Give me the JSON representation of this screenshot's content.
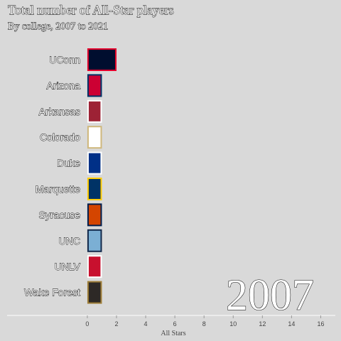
{
  "chart_data": {
    "type": "bar",
    "orientation": "horizontal",
    "title": "Total number of All-Star players",
    "subtitle": "By college, 2007 to 2021",
    "xlabel": "All Stars",
    "ylabel": "",
    "year": "2007",
    "xlim": [
      -5.5,
      17
    ],
    "xticks": [
      0,
      2,
      4,
      6,
      8,
      10,
      12,
      14,
      16
    ],
    "categories": [
      "UConn",
      "Arizona",
      "Arkansas",
      "Colorado",
      "Duke",
      "Marquette",
      "Syracuse",
      "UNC",
      "UNLV",
      "Wake Forest"
    ],
    "values": [
      2,
      1,
      1,
      1,
      1,
      1,
      1,
      1,
      1,
      1
    ],
    "fill_colors": [
      "#000e2f",
      "#cc0033",
      "#9d2235",
      "#ffffff",
      "#003087",
      "#003366",
      "#d44500",
      "#7bafd4",
      "#c8102e",
      "#2d2926"
    ],
    "border_colors": [
      "#e4002b",
      "#003366",
      "#ffffff",
      "#cfb87c",
      "#ffffff",
      "#ffcc00",
      "#001e4d",
      "#13294b",
      "#ffffff",
      "#9e7e38"
    ],
    "grid": false,
    "background": "#d9d9d9"
  }
}
